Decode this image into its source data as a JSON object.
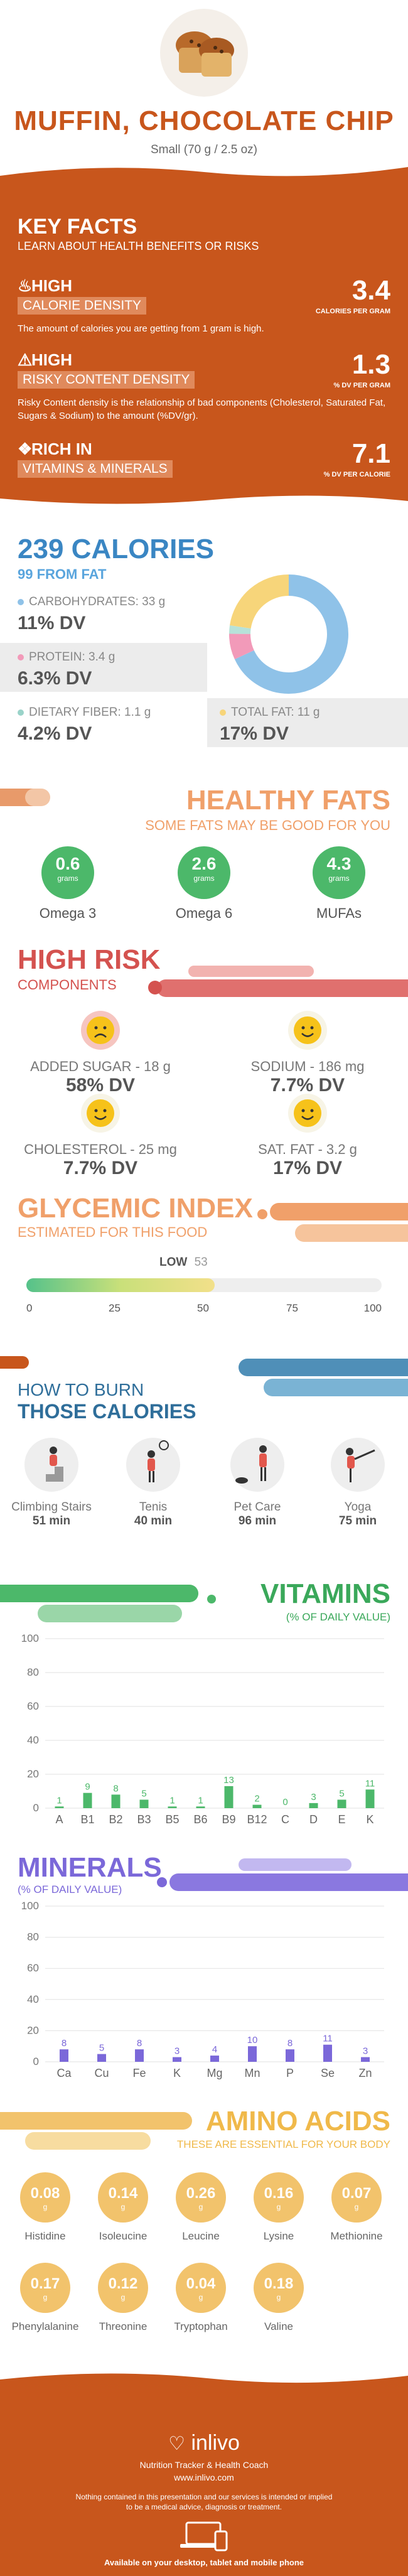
{
  "header": {
    "title": "MUFFIN, CHOCOLATE CHIP",
    "serving": "Small (70 g / 2.5 oz)"
  },
  "key_facts": {
    "title": "KEY FACTS",
    "subtitle": "LEARN ABOUT HEALTH BENEFITS OR RISKS",
    "items": [
      {
        "level": "HIGH",
        "label": "CALORIE DENSITY",
        "value": "3.4",
        "unit": "CALORIES PER GRAM",
        "desc": "The amount of calories you are getting from 1 gram is high.",
        "icon": "flame-icon"
      },
      {
        "level": "HIGH",
        "label": "RISKY CONTENT DENSITY",
        "value": "1.3",
        "unit": "% DV PER GRAM",
        "desc": "Risky Content density is the relationship of bad components (Cholesterol, Saturated Fat, Sugars & Sodium) to the amount (%DV/gr).",
        "icon": "warning-icon"
      },
      {
        "level": "RICH  IN",
        "label": "VITAMINS & MINERALS",
        "value": "7.1",
        "unit": "% DV PER CALORIE",
        "desc": "",
        "icon": "pill-icon"
      }
    ]
  },
  "calories": {
    "title": "239 CALORIES",
    "from_fat": "99 FROM FAT",
    "nutrients": [
      {
        "label": "CARBOHYDRATES: 33 g",
        "pct": "11% DV",
        "color": "#8fc2e8"
      },
      {
        "label": "PROTEIN: 3.4 g",
        "pct": "6.3% DV",
        "color": "#f29ab9"
      },
      {
        "label": "DIETARY FIBER: 1.1 g",
        "pct": "4.2% DV",
        "color": "#9ad3c9"
      },
      {
        "label": "TOTAL FAT: 11 g",
        "pct": "17% DV",
        "color": "#f7d57a"
      }
    ],
    "donut": [
      {
        "name": "carbohydrates",
        "value": 33,
        "color": "#8fc2e8"
      },
      {
        "name": "protein",
        "value": 3.4,
        "color": "#f29ab9"
      },
      {
        "name": "fiber",
        "value": 1.1,
        "color": "#b7e2d9"
      },
      {
        "name": "fat",
        "value": 11,
        "color": "#f7d57a"
      }
    ]
  },
  "fats": {
    "title": "HEALTHY FATS",
    "subtitle": "SOME FATS MAY BE GOOD FOR YOU",
    "unit": "grams",
    "items": [
      {
        "value": "0.6",
        "name": "Omega 3"
      },
      {
        "value": "2.6",
        "name": "Omega 6"
      },
      {
        "value": "4.3",
        "name": "MUFAs"
      }
    ]
  },
  "risk": {
    "title": "HIGH RISK",
    "subtitle": "COMPONENTS",
    "items": [
      {
        "label": "ADDED SUGAR - 18 g",
        "pct": "58% DV",
        "face": "sad"
      },
      {
        "label": "SODIUM - 186 mg",
        "pct": "7.7% DV",
        "face": "happy"
      },
      {
        "label": "CHOLESTEROL - 25 mg",
        "pct": "7.7% DV",
        "face": "happy"
      },
      {
        "label": "SAT. FAT - 3.2 g",
        "pct": "17% DV",
        "face": "happy"
      }
    ]
  },
  "glycemic": {
    "title": "GLYCEMIC INDEX",
    "subtitle": "ESTIMATED FOR THIS FOOD",
    "level": "LOW",
    "value": 53,
    "value_text": "53",
    "ticks": [
      "0",
      "25",
      "50",
      "75",
      "100"
    ]
  },
  "burn": {
    "title1": "HOW TO BURN",
    "title2": "THOSE CALORIES",
    "activities": [
      {
        "name": "Climbing Stairs",
        "minutes": "51 min",
        "icon": "stairs-climber-icon"
      },
      {
        "name": "Tenis",
        "minutes": "40 min",
        "icon": "tennis-player-icon"
      },
      {
        "name": "Pet Care",
        "minutes": "96 min",
        "icon": "dog-walker-icon"
      },
      {
        "name": "Yoga",
        "minutes": "75 min",
        "icon": "yoga-pose-icon"
      }
    ]
  },
  "chart_data": [
    {
      "type": "bar",
      "title": "VITAMINS",
      "subtitle": "(% OF DAILY VALUE)",
      "categories": [
        "A",
        "B1",
        "B2",
        "B3",
        "B5",
        "B6",
        "B9",
        "B12",
        "C",
        "D",
        "E",
        "K"
      ],
      "values": [
        1,
        9,
        8,
        5,
        1,
        1,
        13,
        2,
        0,
        3,
        5,
        11
      ],
      "yticks": [
        "0",
        "20",
        "40",
        "60",
        "80",
        "100"
      ],
      "ylim": [
        0,
        100
      ],
      "color": "#4cb86a"
    },
    {
      "type": "bar",
      "title": "MINERALS",
      "subtitle": "(% OF DAILY VALUE)",
      "categories": [
        "Ca",
        "Cu",
        "Fe",
        "K",
        "Mg",
        "Mn",
        "P",
        "Se",
        "Zn"
      ],
      "values": [
        8,
        5,
        8,
        3,
        4,
        10,
        8,
        11,
        3
      ],
      "yticks": [
        "0",
        "20",
        "40",
        "60",
        "80",
        "100"
      ],
      "ylim": [
        0,
        100
      ],
      "color": "#7b68d9"
    }
  ],
  "amino": {
    "title": "AMINO ACIDS",
    "subtitle": "THESE ARE ESSENTIAL FOR YOUR BODY",
    "unit": "g",
    "items": [
      {
        "value": "0.08",
        "name": "Histidine"
      },
      {
        "value": "0.14",
        "name": "Isoleucine"
      },
      {
        "value": "0.26",
        "name": "Leucine"
      },
      {
        "value": "0.16",
        "name": "Lysine"
      },
      {
        "value": "0.07",
        "name": "Methionine"
      },
      {
        "value": "0.17",
        "name": "Phenylalanine"
      },
      {
        "value": "0.12",
        "name": "Threonine"
      },
      {
        "value": "0.04",
        "name": "Tryptophan"
      },
      {
        "value": "0.18",
        "name": "Valine"
      }
    ]
  },
  "footer": {
    "brand": "inlivo",
    "tagline": "Nutrition Tracker & Health Coach",
    "url": "www.inlivo.com",
    "disclaimer1": "Nothing contained in this presentation and our services is intended or implied",
    "disclaimer2": "to be a medical advice, diagnosis or treatment.",
    "available": "Available on your desktop, tablet and mobile phone"
  }
}
